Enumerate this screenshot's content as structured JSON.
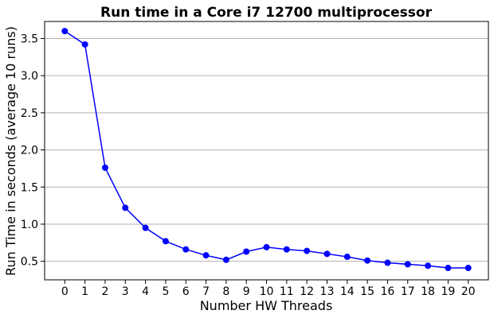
{
  "chart_data": {
    "type": "line",
    "title": "Run time in a Core i7 12700 multiprocessor",
    "xlabel": "Number HW Threads",
    "ylabel": "Run Time in seconds (average 10 runs)",
    "x": [
      0,
      1,
      2,
      3,
      4,
      5,
      6,
      7,
      8,
      9,
      10,
      11,
      12,
      13,
      14,
      15,
      16,
      17,
      18,
      19,
      20
    ],
    "y_ticks": [
      "0.5",
      "1.0",
      "1.5",
      "2.0",
      "2.5",
      "3.0",
      "3.5"
    ],
    "xlim": [
      -1,
      21
    ],
    "ylim": [
      0.25,
      3.73
    ],
    "grid": "horizontal",
    "series": [
      {
        "color": "#0000ff",
        "marker": "circle",
        "values": [
          3.6,
          3.42,
          1.76,
          1.22,
          0.95,
          0.77,
          0.66,
          0.58,
          0.52,
          0.63,
          0.69,
          0.66,
          0.64,
          0.6,
          0.56,
          0.51,
          0.48,
          0.46,
          0.44,
          0.41,
          0.41
        ]
      }
    ]
  }
}
